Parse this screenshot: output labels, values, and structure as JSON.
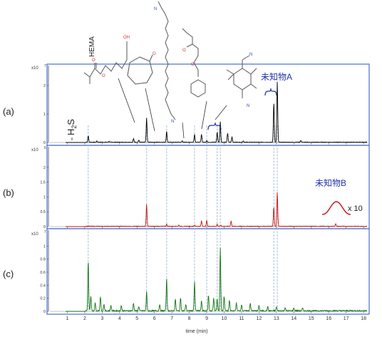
{
  "chart_data": [
    {
      "type": "line",
      "panel_label": "(a)",
      "multiplier_label": "x10",
      "multiplier_exp": "7",
      "xlim": [
        0,
        18.2
      ],
      "ylim": [
        0,
        2.6
      ],
      "yticks": [
        "2",
        "1",
        "0"
      ],
      "color": "#000000",
      "peaks": [
        {
          "x": 2.2,
          "y": 0.22
        },
        {
          "x": 2.7,
          "y": 0.04
        },
        {
          "x": 3.4,
          "y": 0.03
        },
        {
          "x": 4.8,
          "y": 0.12
        },
        {
          "x": 5.1,
          "y": 0.07
        },
        {
          "x": 5.55,
          "y": 0.85
        },
        {
          "x": 6.7,
          "y": 0.38
        },
        {
          "x": 7.6,
          "y": 0.05
        },
        {
          "x": 8.3,
          "y": 0.28
        },
        {
          "x": 8.7,
          "y": 0.28
        },
        {
          "x": 9.0,
          "y": 0.06
        },
        {
          "x": 9.6,
          "y": 0.35
        },
        {
          "x": 9.78,
          "y": 0.72
        },
        {
          "x": 10.2,
          "y": 0.32
        },
        {
          "x": 10.45,
          "y": 0.18
        },
        {
          "x": 11.1,
          "y": 0.05
        },
        {
          "x": 12.85,
          "y": 1.4
        },
        {
          "x": 13.05,
          "y": 2.12
        },
        {
          "x": 14.4,
          "y": 0.06
        }
      ],
      "annotations": {
        "h2s_label": "H2S",
        "hema_label": "HEMA",
        "unknown_a_label": "未知物A"
      }
    },
    {
      "type": "line",
      "panel_label": "(b)",
      "multiplier_label": "x10",
      "multiplier_exp": "6",
      "xlim": [
        0,
        18.2
      ],
      "ylim": [
        0,
        2.6
      ],
      "yticks": [
        "2",
        "1.5",
        "1",
        "0.5",
        "0"
      ],
      "color": "#cc1111",
      "peaks": [
        {
          "x": 5.55,
          "y": 0.75
        },
        {
          "x": 6.7,
          "y": 0.07
        },
        {
          "x": 7.4,
          "y": 0.04
        },
        {
          "x": 8.3,
          "y": 0.04
        },
        {
          "x": 8.7,
          "y": 0.18
        },
        {
          "x": 9.0,
          "y": 0.2
        },
        {
          "x": 9.6,
          "y": 0.07
        },
        {
          "x": 9.8,
          "y": 0.04
        },
        {
          "x": 10.4,
          "y": 0.18
        },
        {
          "x": 12.85,
          "y": 0.65
        },
        {
          "x": 13.05,
          "y": 1.15
        },
        {
          "x": 16.4,
          "y": 0.09
        }
      ],
      "annotations": {
        "unknown_b_label": "未知物B",
        "inset_scale_label": "x 10"
      }
    },
    {
      "type": "line",
      "panel_label": "(c)",
      "multiplier_label": "x10",
      "multiplier_exp": "7",
      "xlim": [
        0,
        18.2
      ],
      "ylim": [
        0,
        1.2
      ],
      "yticks": [
        "1",
        "0.8",
        "0.6",
        "0.4",
        "0.2",
        "0"
      ],
      "color": "#117711",
      "xticks": [
        "1",
        "2",
        "3",
        "4",
        "5",
        "6",
        "7",
        "8",
        "9",
        "10",
        "11",
        "12",
        "13",
        "14",
        "15",
        "16",
        "17",
        "18"
      ],
      "xlabel": "time (min)",
      "peaks": [
        {
          "x": 2.2,
          "y": 0.76
        },
        {
          "x": 2.35,
          "y": 0.22
        },
        {
          "x": 2.6,
          "y": 0.12
        },
        {
          "x": 2.9,
          "y": 0.22
        },
        {
          "x": 3.1,
          "y": 0.1
        },
        {
          "x": 3.5,
          "y": 0.08
        },
        {
          "x": 4.1,
          "y": 0.08
        },
        {
          "x": 4.8,
          "y": 0.12
        },
        {
          "x": 5.1,
          "y": 0.07
        },
        {
          "x": 5.55,
          "y": 0.3
        },
        {
          "x": 6.3,
          "y": 0.1
        },
        {
          "x": 6.7,
          "y": 0.5
        },
        {
          "x": 7.2,
          "y": 0.18
        },
        {
          "x": 7.5,
          "y": 0.2
        },
        {
          "x": 7.8,
          "y": 0.1
        },
        {
          "x": 8.3,
          "y": 0.45
        },
        {
          "x": 8.7,
          "y": 0.15
        },
        {
          "x": 9.1,
          "y": 0.24
        },
        {
          "x": 9.4,
          "y": 0.2
        },
        {
          "x": 9.6,
          "y": 0.18
        },
        {
          "x": 9.78,
          "y": 0.97
        },
        {
          "x": 10.0,
          "y": 0.22
        },
        {
          "x": 10.3,
          "y": 0.16
        },
        {
          "x": 10.7,
          "y": 0.12
        },
        {
          "x": 11.0,
          "y": 0.1
        },
        {
          "x": 11.5,
          "y": 0.12
        },
        {
          "x": 12.0,
          "y": 0.08
        },
        {
          "x": 12.5,
          "y": 0.06
        },
        {
          "x": 13.0,
          "y": 0.06
        },
        {
          "x": 13.5,
          "y": 0.05
        },
        {
          "x": 14.0,
          "y": 0.04
        },
        {
          "x": 14.5,
          "y": 0.04
        }
      ]
    }
  ],
  "palette": {
    "marker_line": "#9ab8d8",
    "panel_border": "#4a6fd0",
    "annotation": "#2233aa",
    "structure": "#555555"
  }
}
